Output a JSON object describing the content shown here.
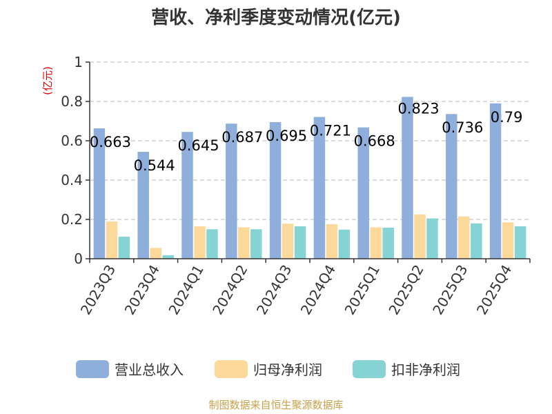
{
  "chart_data": {
    "type": "bar",
    "title": "营收、净利季度变动情况(亿元)",
    "ylabel": "(亿元)",
    "ylim": [
      0,
      1
    ],
    "yticks": [
      "0",
      "0.2",
      "0.4",
      "0.6",
      "0.8",
      "1"
    ],
    "yticks_values": [
      0,
      0.2,
      0.4,
      0.6,
      0.8,
      1
    ],
    "grid": true,
    "legend_position": "bottom",
    "categories": [
      "2023Q3",
      "2023Q4",
      "2024Q1",
      "2024Q2",
      "2024Q3",
      "2024Q4",
      "2025Q1",
      "2025Q2",
      "2025Q3",
      "2025Q4"
    ],
    "series": [
      {
        "name": "营业总收入",
        "color": "#8eaedc",
        "values": [
          0.663,
          0.544,
          0.645,
          0.687,
          0.695,
          0.721,
          0.668,
          0.823,
          0.736,
          0.79
        ]
      },
      {
        "name": "归母净利润",
        "color": "#fdd89b",
        "values": [
          0.19,
          0.055,
          0.165,
          0.16,
          0.178,
          0.176,
          0.16,
          0.225,
          0.215,
          0.185
        ]
      },
      {
        "name": "扣非净利润",
        "color": "#85d3d3",
        "values": [
          0.112,
          0.018,
          0.15,
          0.15,
          0.165,
          0.148,
          0.158,
          0.205,
          0.18,
          0.165
        ]
      }
    ],
    "data_labels": [
      "0.663",
      "0.544",
      "0.645",
      "0.687",
      "0.695",
      "0.721",
      "0.668",
      "0.823",
      "0.736",
      "0.79"
    ]
  },
  "source": "制图数据来自恒生聚源数据库"
}
